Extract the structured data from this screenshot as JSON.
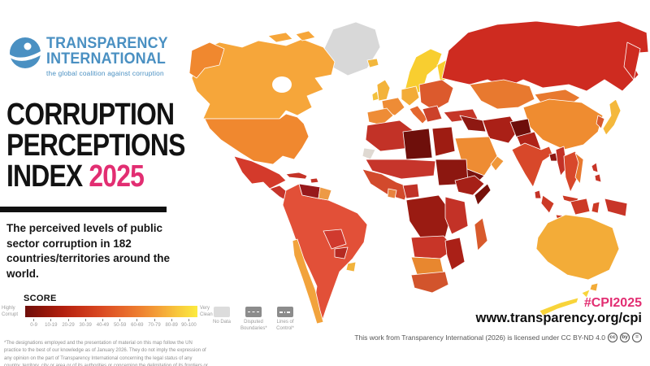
{
  "colors": {
    "accent_pink": "#E22E72",
    "logo_blue": "#4A90C2",
    "gray_label": "#9B9B9B",
    "footnote_gray": "#8F8F8F",
    "license_gray": "#555555",
    "divider_black": "#101010",
    "legend_box_light": "#DCDCDC",
    "legend_box_dark": "#8C8C8C"
  },
  "logo": {
    "line1": "TRANSPARENCY",
    "line2": "INTERNATIONAL",
    "tagline": "the global coalition against corruption"
  },
  "title": {
    "line1": "CORRUPTION",
    "line2": "PERCEPTIONS",
    "line3": "INDEX",
    "year": "2025"
  },
  "description": "The perceived levels of public sector corruption in 182 countries/territories around the world.",
  "score_legend": {
    "label": "SCORE",
    "left_label": "Highly Corrupt",
    "right_label": "Very Clean",
    "ticks": [
      "0-9",
      "10-19",
      "20-29",
      "30-39",
      "40-49",
      "50-59",
      "60-69",
      "70-79",
      "80-89",
      "90-100"
    ],
    "gradient": [
      "#6E0E0A",
      "#921609",
      "#B3200F",
      "#C93418",
      "#DA4A22",
      "#E5642A",
      "#EE8030",
      "#F4A238",
      "#F8C93C",
      "#FCEB3F"
    ]
  },
  "map_legend": {
    "items": [
      {
        "label": "No Data",
        "style": "nodata"
      },
      {
        "label": "Disputed Boundaries*",
        "style": "disputed"
      },
      {
        "label": "Lines of Control*",
        "style": "lines"
      }
    ]
  },
  "footnote": "*The designations employed and the presentation of material on this map follow the UN practice to the best of our knowledge as of January 2026. They do not imply the expression of any opinion on the part of Transparency International concerning the legal status of any country, territory, city or area or of its authorities or concerning the delimitation of its frontiers or boundaries.",
  "footer": {
    "hashtag": "#CPI2025",
    "url": "www.transparency.org/cpi",
    "license": "This work from Transparency International (2026) is licensed under CC BY-ND 4.0",
    "cc_icons": [
      {
        "name": "cc-icon",
        "glyph": "cc"
      },
      {
        "name": "attribution-icon",
        "glyph": "by"
      },
      {
        "name": "no-derivatives-icon",
        "glyph": "="
      }
    ]
  },
  "map": {
    "regions": {
      "greenland": "#D8D8D8",
      "iceland": "#F2B73C",
      "canada": "#F6A63A",
      "alaska": "#F0882F",
      "usa": "#F0882F",
      "mexico": "#D43A2B",
      "central_america": "#C6342A",
      "caribbean": "#C43327",
      "venezuela": "#97191B",
      "guyanas": "#ED9A45",
      "south_america": "#E25038",
      "bolivia": "#D03A2E",
      "paraguay": "#B52A22",
      "chile": "#F2A33C",
      "uruguay": "#F2B33C",
      "scandinavia": "#F8CE30",
      "finland": "#F8CE30",
      "uk": "#F3B33A",
      "ireland": "#F3C13C",
      "iberia": "#EE8C36",
      "france": "#EE8C36",
      "central_europe": "#F3AC38",
      "italy": "#E4672F",
      "eastern_europe": "#DC5A2D",
      "balkans": "#CC422A",
      "turkey": "#C53628",
      "russia": "#CE2B20",
      "kazakhstan": "#E8792F",
      "mongolia": "#E8792F",
      "china": "#EF8C30",
      "japan": "#F4B83C",
      "korea": "#D85A2D",
      "iran": "#AA2017",
      "iraq_syria": "#8E1812",
      "saudi_arabia": "#EE8C33",
      "yemen": "#7A120D",
      "oman": "#F0983A",
      "afghanistan": "#6E0E0A",
      "pakistan": "#B02318",
      "india": "#D8482A",
      "sri_lanka": "#C43327",
      "bangladesh": "#8E1812",
      "myanmar": "#C33227",
      "se_asia": "#D8482B",
      "vietnam": "#E8792F",
      "philippines": "#C83528",
      "malaysia": "#CC3A26",
      "indonesia": "#CC3A26",
      "png": "#C83528",
      "australia": "#F3AC38",
      "tasmania": "#F3AC38",
      "new_zealand": "#F8D43A",
      "north_africa": "#C23227",
      "western_sahara": "#DFD9D2",
      "libya": "#6E0F0B",
      "egypt": "#9E1C12",
      "sahel": "#C6352B",
      "sudan": "#8C1710",
      "west_africa": "#D24A2C",
      "ghana": "#E8823E",
      "nigeria": "#C03227",
      "ethiopia": "#A62017",
      "somalia": "#761009",
      "central_africa": "#9A1B12",
      "east_africa": "#C33227",
      "angola_zambia": "#C83528",
      "mozambique_zimbabwe": "#AA2017",
      "namibia_botswana": "#E8872F",
      "south_africa": "#D2542C",
      "madagascar": "#D85A2C"
    }
  }
}
